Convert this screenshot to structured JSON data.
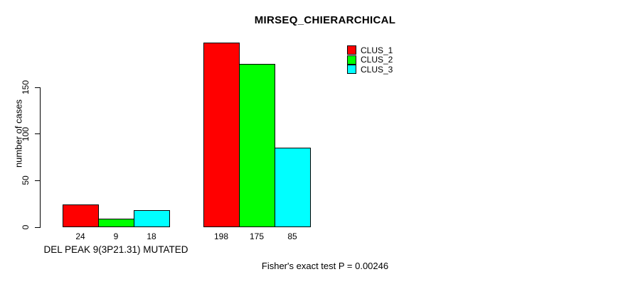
{
  "chart_data": {
    "type": "bar",
    "title": "MIRSEQ_CHIERARCHICAL",
    "ylabel": "number of cases",
    "xlabel": "",
    "ylim": [
      0,
      150
    ],
    "yticks": [
      0,
      50,
      100,
      150
    ],
    "grid": false,
    "legend_position": "top-right",
    "categories": [
      "DEL PEAK 9(3P21.31) MUTATED",
      ""
    ],
    "series": [
      {
        "name": "CLUS_1",
        "color": "#FF0000",
        "values": [
          24,
          198
        ]
      },
      {
        "name": "CLUS_2",
        "color": "#00FF00",
        "values": [
          9,
          175
        ]
      },
      {
        "name": "CLUS_3",
        "color": "#00FFFF",
        "values": [
          18,
          85
        ]
      }
    ],
    "bar_value_labels_shown": true,
    "annotation": "Fisher's exact test P = 0.00246",
    "axis_color": "#000000",
    "background_color": "#FFFFFF"
  }
}
